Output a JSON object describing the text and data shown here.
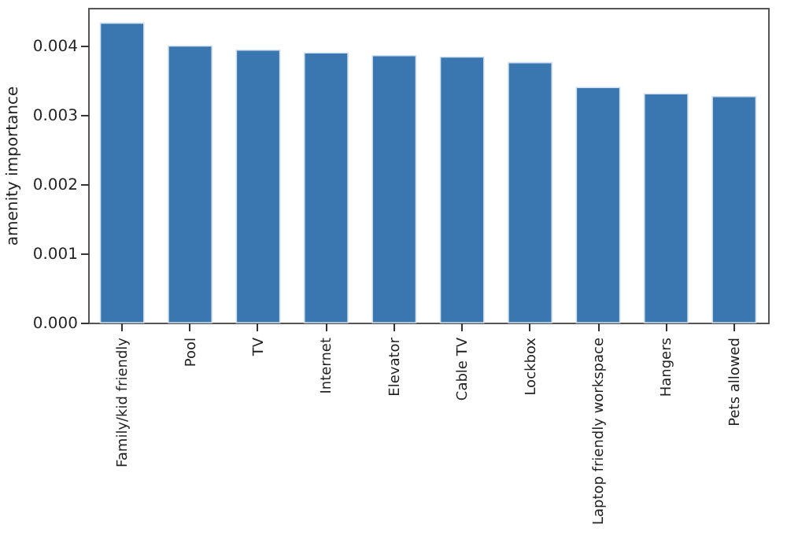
{
  "chart_data": {
    "type": "bar",
    "ylabel": "amenity importance",
    "categories": [
      "Family/kid friendly",
      "Pool",
      "TV",
      "Internet",
      "Elevator",
      "Cable TV",
      "Lockbox",
      "Laptop friendly workspace",
      "Hangers",
      "Pets allowed"
    ],
    "values": [
      0.00432,
      0.00399,
      0.00393,
      0.00389,
      0.00385,
      0.00383,
      0.00375,
      0.00339,
      0.0033,
      0.00326
    ],
    "color": "#3a76af",
    "ylim": [
      0,
      0.00454
    ],
    "yticks": [
      {
        "value": 0,
        "label": "0.000"
      },
      {
        "value": 0.001,
        "label": "0.001"
      },
      {
        "value": 0.002,
        "label": "0.002"
      },
      {
        "value": 0.003,
        "label": "0.003"
      },
      {
        "value": 0.004,
        "label": "0.004"
      }
    ],
    "grid": false
  }
}
